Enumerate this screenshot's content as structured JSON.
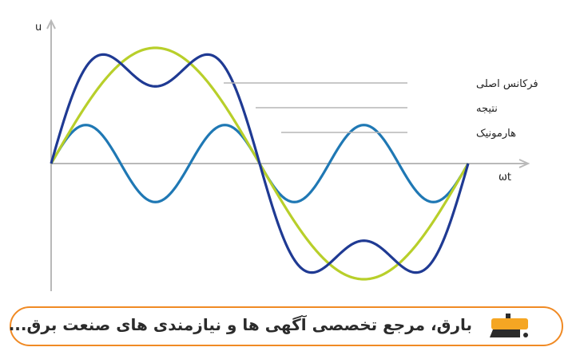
{
  "chart_data": {
    "type": "line",
    "y_axis_symbol": "u",
    "x_axis_symbol": "ωt",
    "x_range": [
      0,
      6.2832
    ],
    "y_range": [
      -1.15,
      1.15
    ],
    "grid": false,
    "legend_placement": "right, with leader lines",
    "series": [
      {
        "name": "فرکانس اصلی",
        "formula": "sin(x)",
        "color": "#b8cf2a"
      },
      {
        "name": "نتیجه",
        "formula": "sin(x) + 0.333*sin(3x)",
        "color": "#1f3a93"
      },
      {
        "name": "هارمونیک",
        "formula": "0.333*sin(3x)",
        "color": "#1f78b4"
      }
    ]
  },
  "banner": {
    "text": "بارق، مرجع تخصصی آگهی ها و نیازمندی های صنعت برق...",
    "logo_text": "بارق",
    "accent_color": "#f08a24"
  }
}
